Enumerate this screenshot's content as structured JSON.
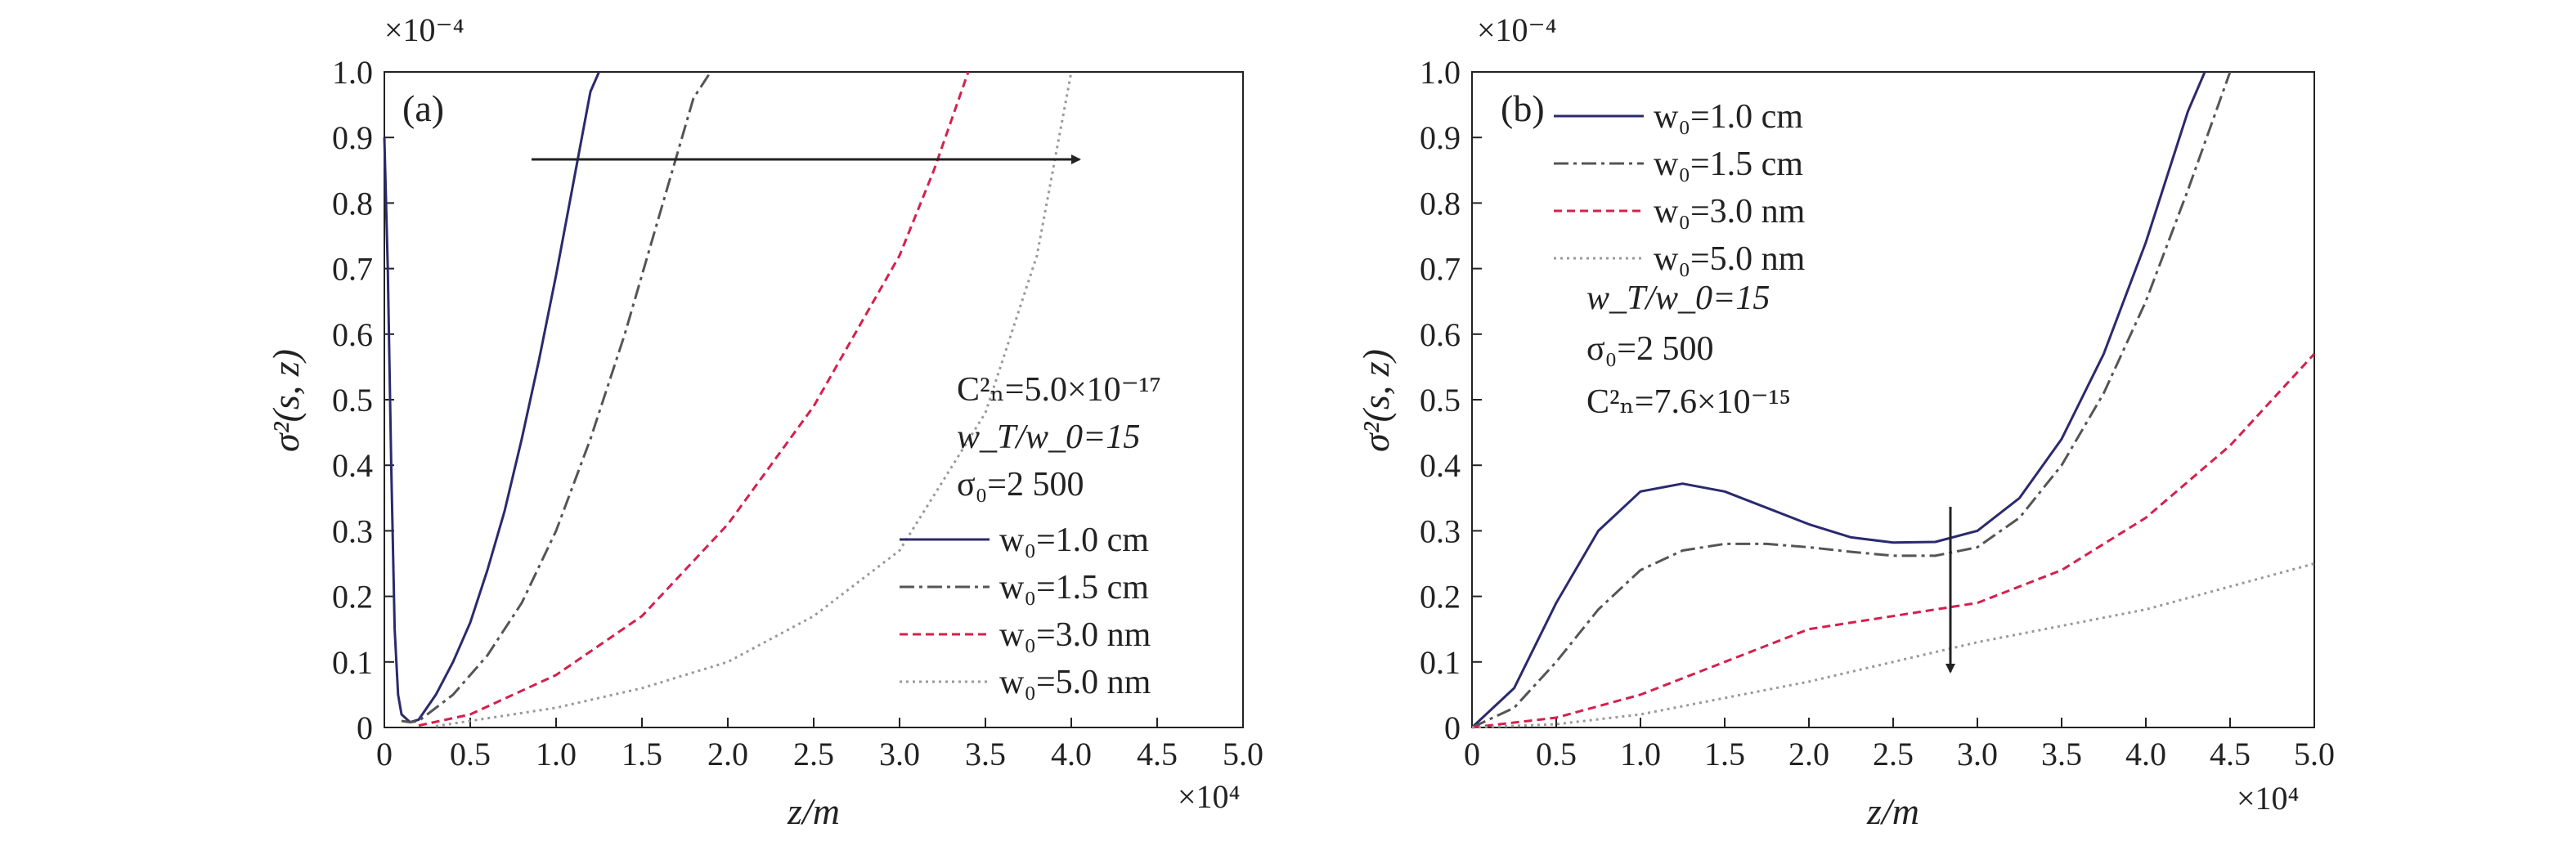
{
  "colors": {
    "axis": "#222222",
    "arrow": "#222222"
  },
  "chart_data": [
    {
      "type": "line",
      "panel_label": "(a)",
      "xlabel": "z/m",
      "ylabel": "σ²(s, z)",
      "x_multiplier": "×10⁴",
      "y_multiplier": "×10⁻⁴",
      "xlim": [
        0,
        5.0
      ],
      "ylim": [
        0,
        1.0
      ],
      "xticks": [
        0,
        0.5,
        1.0,
        1.5,
        2.0,
        2.5,
        3.0,
        3.5,
        4.0,
        4.5,
        5.0
      ],
      "yticks": [
        0,
        0.1,
        0.2,
        0.3,
        0.4,
        0.5,
        0.6,
        0.7,
        0.8,
        0.9,
        1.0
      ],
      "xtick_labels": [
        "0",
        "0.5",
        "1.0",
        "1.5",
        "2.0",
        "2.5",
        "3.0",
        "3.5",
        "4.0",
        "4.5",
        "5.0"
      ],
      "ytick_labels": [
        "0",
        "0.1",
        "0.2",
        "0.3",
        "0.4",
        "0.5",
        "0.6",
        "0.7",
        "0.8",
        "0.9",
        "1.0"
      ],
      "annotations": {
        "cn2": "C²ₙ=5.0×10⁻¹⁷",
        "ratio": "w_T/w_0=15",
        "sigma0": "σ₀=2 500"
      },
      "arrow": {
        "from": [
          0.9,
          0.865
        ],
        "to": [
          4.3,
          0.865
        ]
      },
      "series": [
        {
          "name": "w₀=1.0 cm",
          "color": "#2a2a6e",
          "dash": "",
          "x": [
            0,
            0.02,
            0.04,
            0.06,
            0.08,
            0.1,
            0.15,
            0.2,
            0.3,
            0.4,
            0.5,
            0.6,
            0.7,
            0.8,
            0.9,
            1.0,
            1.1,
            1.2,
            1.25
          ],
          "y": [
            0.9,
            0.7,
            0.4,
            0.15,
            0.05,
            0.02,
            0.008,
            0.012,
            0.05,
            0.1,
            0.16,
            0.24,
            0.33,
            0.44,
            0.56,
            0.69,
            0.83,
            0.97,
            1.0
          ]
        },
        {
          "name": "w₀=1.5 cm",
          "color": "#555555",
          "dash": "18,6,4,6",
          "x": [
            0.1,
            0.15,
            0.2,
            0.4,
            0.6,
            0.8,
            1.0,
            1.2,
            1.4,
            1.6,
            1.8,
            1.9
          ],
          "y": [
            0.01,
            0.008,
            0.01,
            0.05,
            0.11,
            0.19,
            0.3,
            0.44,
            0.6,
            0.78,
            0.96,
            1.0
          ]
        },
        {
          "name": "w₀=3.0 nm",
          "color": "#d4204d",
          "dash": "10,6",
          "x": [
            0.2,
            0.5,
            1.0,
            1.5,
            2.0,
            2.5,
            3.0,
            3.2,
            3.4
          ],
          "y": [
            0.003,
            0.02,
            0.08,
            0.17,
            0.31,
            0.49,
            0.72,
            0.85,
            1.0
          ]
        },
        {
          "name": "w₀=5.0 nm",
          "color": "#999999",
          "dash": "3,5",
          "x": [
            0.3,
            1.0,
            1.5,
            2.0,
            2.5,
            3.0,
            3.5,
            3.8,
            4.0
          ],
          "y": [
            0.002,
            0.03,
            0.06,
            0.1,
            0.17,
            0.27,
            0.48,
            0.72,
            1.0
          ]
        }
      ]
    },
    {
      "type": "line",
      "panel_label": "(b)",
      "xlabel": "z/m",
      "ylabel": "σ²(s, z)",
      "x_multiplier": "×10⁴",
      "y_multiplier": "×10⁻⁴",
      "xlim": [
        0,
        5.0
      ],
      "ylim": [
        0,
        1.0
      ],
      "xticks": [
        0,
        0.5,
        1.0,
        1.5,
        2.0,
        2.5,
        3.0,
        3.5,
        4.0,
        4.5,
        5.0
      ],
      "yticks": [
        0,
        0.1,
        0.2,
        0.3,
        0.4,
        0.5,
        0.6,
        0.7,
        0.8,
        0.9,
        1.0
      ],
      "xtick_labels": [
        "0",
        "0.5",
        "1.0",
        "1.5",
        "2.0",
        "2.5",
        "3.0",
        "3.5",
        "4.0",
        "4.5",
        "5.0"
      ],
      "ytick_labels": [
        "0",
        "0.1",
        "0.2",
        "0.3",
        "0.4",
        "0.5",
        "0.6",
        "0.7",
        "0.8",
        "0.9",
        "1.0"
      ],
      "annotations": {
        "ratio": "w_T/w_0=15",
        "sigma0": "σ₀=2 500",
        "cn2": "C²ₙ=7.6×10⁻¹⁵"
      },
      "arrow": {
        "from": [
          2.85,
          0.33
        ],
        "to": [
          2.85,
          0.08
        ]
      },
      "series": [
        {
          "name": "w₀=1.0 cm",
          "color": "#2a2a6e",
          "dash": "",
          "x": [
            0,
            0.25,
            0.5,
            0.75,
            1.0,
            1.25,
            1.5,
            1.75,
            2.0,
            2.25,
            2.5,
            2.75,
            3.0,
            3.25,
            3.5,
            3.75,
            4.0,
            4.25,
            4.35
          ],
          "y": [
            0,
            0.06,
            0.19,
            0.3,
            0.36,
            0.372,
            0.36,
            0.335,
            0.31,
            0.29,
            0.282,
            0.283,
            0.3,
            0.35,
            0.44,
            0.57,
            0.74,
            0.94,
            1.0
          ]
        },
        {
          "name": "w₀=1.5 cm",
          "color": "#555555",
          "dash": "18,6,4,6",
          "x": [
            0,
            0.25,
            0.5,
            0.75,
            1.0,
            1.25,
            1.5,
            1.75,
            2.0,
            2.25,
            2.5,
            2.75,
            3.0,
            3.25,
            3.5,
            3.75,
            4.0,
            4.25,
            4.5
          ],
          "y": [
            0,
            0.03,
            0.1,
            0.18,
            0.24,
            0.27,
            0.28,
            0.28,
            0.275,
            0.268,
            0.262,
            0.262,
            0.275,
            0.32,
            0.4,
            0.51,
            0.65,
            0.82,
            1.0
          ]
        },
        {
          "name": "w₀=3.0 nm",
          "color": "#d4204d",
          "dash": "10,6",
          "x": [
            0,
            0.5,
            1.0,
            1.5,
            2.0,
            2.5,
            3.0,
            3.5,
            4.0,
            4.5,
            5.0
          ],
          "y": [
            0,
            0.015,
            0.05,
            0.1,
            0.15,
            0.17,
            0.19,
            0.24,
            0.32,
            0.43,
            0.57
          ]
        },
        {
          "name": "w₀=5.0 nm",
          "color": "#999999",
          "dash": "3,5",
          "x": [
            0,
            0.5,
            1.0,
            1.5,
            2.0,
            2.5,
            3.0,
            3.5,
            4.0,
            4.5,
            5.0
          ],
          "y": [
            0,
            0.005,
            0.02,
            0.045,
            0.07,
            0.1,
            0.13,
            0.155,
            0.18,
            0.215,
            0.25
          ]
        }
      ]
    }
  ]
}
